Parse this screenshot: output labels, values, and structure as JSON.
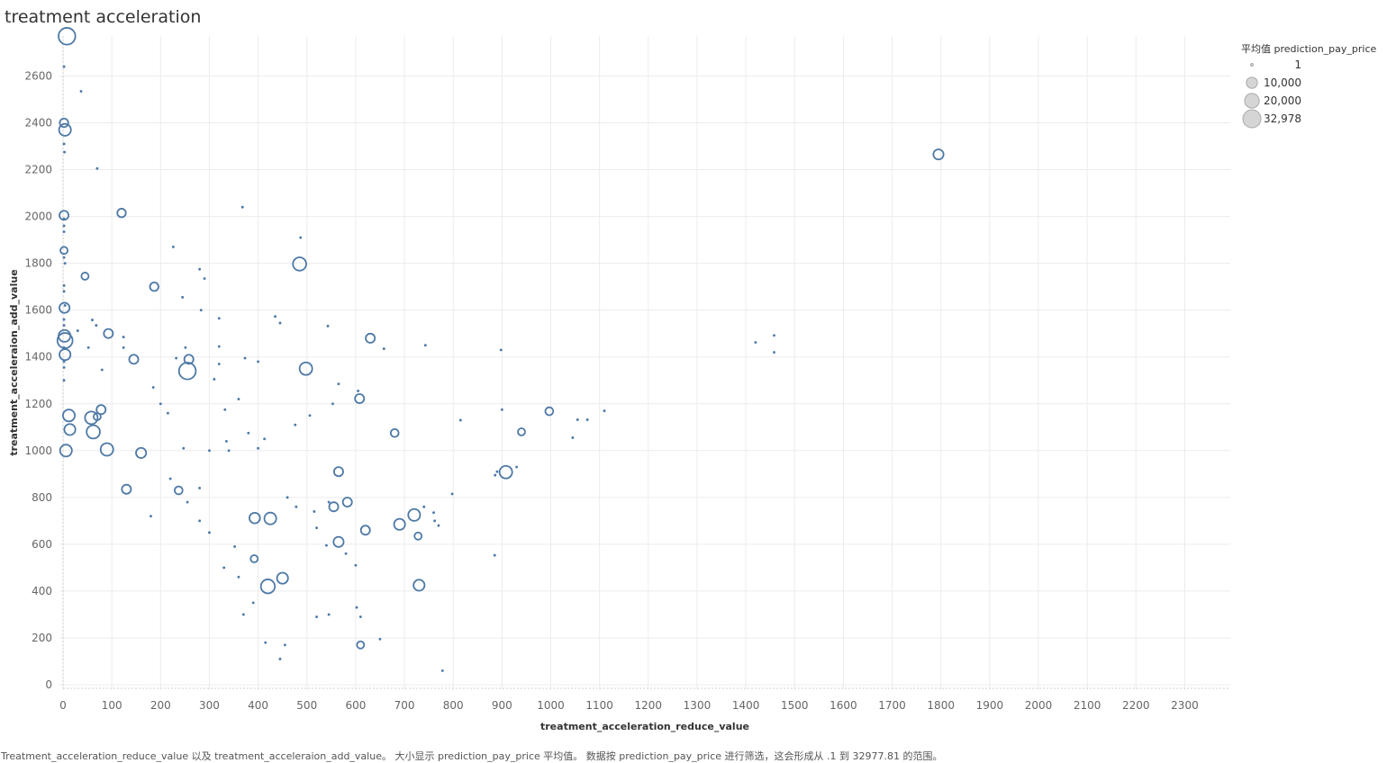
{
  "title": "treatment acceleration",
  "footer": "Treatment_acceleration_reduce_value 以及 treatment_acceleraion_add_value。 大小显示 prediction_pay_price 平均值。 数据按 prediction_pay_price 进行筛选，这会形成从 .1 到 32977.81 的范围。",
  "legend": {
    "title": "平均值 prediction_pay_price",
    "entries": [
      {
        "label": "1",
        "value": 1
      },
      {
        "label": "10,000",
        "value": 10000
      },
      {
        "label": "20,000",
        "value": 20000
      },
      {
        "label": "32,978",
        "value": 32978
      }
    ]
  },
  "colors": {
    "mark": "#4e79a7",
    "grid": "#ececec",
    "legend_fill": "#d5d5d5",
    "legend_stroke": "#a8a8a8"
  },
  "chart_data": {
    "type": "scatter",
    "xlabel": "treatment_acceleration_reduce_value",
    "ylabel": "treatment_acceleraion_add_value",
    "xlim": [
      0,
      2400
    ],
    "ylim": [
      0,
      2790
    ],
    "xticks": [
      0,
      100,
      200,
      300,
      400,
      500,
      600,
      700,
      800,
      900,
      1000,
      1100,
      1200,
      1300,
      1400,
      1500,
      1600,
      1700,
      1800,
      1900,
      2000,
      2100,
      2200,
      2300
    ],
    "yticks": [
      0,
      200,
      400,
      600,
      800,
      1000,
      1200,
      1400,
      1600,
      1800,
      2000,
      2200,
      2400,
      2600
    ],
    "size_field": "平均值 prediction_pay_price",
    "grid": true,
    "points": [
      [
        1795,
        2265,
        8000
      ],
      [
        8,
        2770,
        28000
      ],
      [
        2,
        2640,
        1
      ],
      [
        37,
        2535,
        1
      ],
      [
        2,
        2400,
        5000
      ],
      [
        4,
        2370,
        12000
      ],
      [
        2,
        2310,
        1
      ],
      [
        3,
        2275,
        1
      ],
      [
        70,
        2205,
        1
      ],
      [
        120,
        2015,
        5000
      ],
      [
        368,
        2040,
        1
      ],
      [
        487,
        1910,
        1
      ],
      [
        485,
        1797,
        16000
      ],
      [
        2,
        2005,
        6000
      ],
      [
        2,
        1990,
        1
      ],
      [
        2,
        1960,
        1
      ],
      [
        2,
        1935,
        1
      ],
      [
        2,
        1855,
        3000
      ],
      [
        2,
        1825,
        1
      ],
      [
        4,
        1800,
        1
      ],
      [
        45,
        1745,
        3000
      ],
      [
        187,
        1700,
        5000
      ],
      [
        226,
        1870,
        1
      ],
      [
        280,
        1775,
        1
      ],
      [
        290,
        1735,
        1
      ],
      [
        245,
        1655,
        1
      ],
      [
        283,
        1600,
        1
      ],
      [
        2,
        1705,
        1
      ],
      [
        2,
        1680,
        1
      ],
      [
        4,
        1620,
        1
      ],
      [
        3,
        1610,
        8000
      ],
      [
        2,
        1560,
        1
      ],
      [
        2,
        1535,
        1
      ],
      [
        3,
        1490,
        12000
      ],
      [
        4,
        1470,
        22000
      ],
      [
        2,
        1440,
        1
      ],
      [
        4,
        1410,
        10000
      ],
      [
        2,
        1380,
        1
      ],
      [
        2,
        1355,
        1
      ],
      [
        2,
        1300,
        1
      ],
      [
        1420,
        1462,
        1
      ],
      [
        1458,
        1492,
        1
      ],
      [
        1458,
        1420,
        1
      ],
      [
        898,
        1430,
        1
      ],
      [
        743,
        1450,
        1
      ],
      [
        658,
        1435,
        1
      ],
      [
        630,
        1480,
        6000
      ],
      [
        543,
        1532,
        1
      ],
      [
        435,
        1573,
        1
      ],
      [
        445,
        1545,
        1
      ],
      [
        498,
        1350,
        14000
      ],
      [
        255,
        1340,
        28000
      ],
      [
        258,
        1390,
        6000
      ],
      [
        145,
        1390,
        6000
      ],
      [
        93,
        1500,
        6000
      ],
      [
        68,
        1535,
        1
      ],
      [
        60,
        1558,
        1
      ],
      [
        30,
        1512,
        1
      ],
      [
        320,
        1565,
        1
      ],
      [
        400,
        1380,
        1
      ],
      [
        373,
        1395,
        1
      ],
      [
        320,
        1445,
        1
      ],
      [
        320,
        1370,
        1
      ],
      [
        232,
        1395,
        1
      ],
      [
        251,
        1440,
        1
      ],
      [
        124,
        1485,
        1
      ],
      [
        124,
        1440,
        1
      ],
      [
        80,
        1345,
        1
      ],
      [
        52,
        1440,
        1
      ],
      [
        997,
        1168,
        4000
      ],
      [
        1110,
        1170,
        1
      ],
      [
        1075,
        1132,
        1
      ],
      [
        1055,
        1132,
        1
      ],
      [
        1045,
        1055,
        1
      ],
      [
        940,
        1080,
        3000
      ],
      [
        908,
        908,
        14000
      ],
      [
        930,
        930,
        1
      ],
      [
        886,
        895,
        1
      ],
      [
        890,
        910,
        1
      ],
      [
        900,
        1175,
        1
      ],
      [
        815,
        1130,
        1
      ],
      [
        798,
        815,
        1
      ],
      [
        778,
        60,
        1
      ],
      [
        885,
        553,
        1
      ],
      [
        730,
        425,
        10000
      ],
      [
        610,
        170,
        3000
      ],
      [
        650,
        195,
        1
      ],
      [
        608,
        1222,
        6000
      ],
      [
        605,
        1255,
        1
      ],
      [
        565,
        910,
        6000
      ],
      [
        565,
        1285,
        1
      ],
      [
        506,
        1150,
        1
      ],
      [
        553,
        1200,
        1
      ],
      [
        476,
        1110,
        1
      ],
      [
        413,
        1050,
        1
      ],
      [
        400,
        1010,
        1
      ],
      [
        680,
        1075,
        4000
      ],
      [
        690,
        685,
        10000
      ],
      [
        720,
        725,
        12000
      ],
      [
        728,
        635,
        3000
      ],
      [
        740,
        760,
        1
      ],
      [
        762,
        700,
        1
      ],
      [
        770,
        680,
        1
      ],
      [
        760,
        735,
        1
      ],
      [
        425,
        710,
        12000
      ],
      [
        420,
        420,
        18000
      ],
      [
        393,
        712,
        9000
      ],
      [
        450,
        455,
        10000
      ],
      [
        392,
        538,
        3000
      ],
      [
        555,
        760,
        6000
      ],
      [
        583,
        780,
        6000
      ],
      [
        565,
        610,
        8000
      ],
      [
        620,
        660,
        6000
      ],
      [
        180,
        720,
        1
      ],
      [
        70,
        1145,
        3000
      ],
      [
        58,
        1140,
        14000
      ],
      [
        62,
        1080,
        16000
      ],
      [
        90,
        1005,
        14000
      ],
      [
        78,
        1175,
        6000
      ],
      [
        12,
        1150,
        12000
      ],
      [
        14,
        1090,
        10000
      ],
      [
        6,
        1000,
        12000
      ],
      [
        130,
        835,
        6000
      ],
      [
        160,
        990,
        8000
      ],
      [
        200,
        1200,
        1
      ],
      [
        215,
        1160,
        1
      ],
      [
        185,
        1270,
        1
      ],
      [
        310,
        1305,
        1
      ],
      [
        332,
        1175,
        1
      ],
      [
        360,
        1220,
        1
      ],
      [
        380,
        1075,
        1
      ],
      [
        335,
        1040,
        1
      ],
      [
        340,
        1000,
        1
      ],
      [
        300,
        1000,
        1
      ],
      [
        247,
        1010,
        1
      ],
      [
        220,
        880,
        1
      ],
      [
        255,
        780,
        1
      ],
      [
        237,
        830,
        4000
      ],
      [
        280,
        840,
        1
      ],
      [
        280,
        700,
        1
      ],
      [
        300,
        650,
        1
      ],
      [
        352,
        590,
        1
      ],
      [
        330,
        500,
        1
      ],
      [
        360,
        460,
        1
      ],
      [
        370,
        300,
        1
      ],
      [
        390,
        350,
        1
      ],
      [
        415,
        180,
        1
      ],
      [
        455,
        170,
        1
      ],
      [
        445,
        110,
        1
      ],
      [
        520,
        290,
        1
      ],
      [
        545,
        300,
        1
      ],
      [
        602,
        330,
        1
      ],
      [
        610,
        290,
        1
      ],
      [
        600,
        510,
        1
      ],
      [
        580,
        560,
        1
      ],
      [
        540,
        595,
        1
      ],
      [
        520,
        670,
        1
      ],
      [
        460,
        800,
        1
      ],
      [
        478,
        760,
        1
      ],
      [
        515,
        740,
        1
      ],
      [
        545,
        780,
        1
      ]
    ]
  }
}
